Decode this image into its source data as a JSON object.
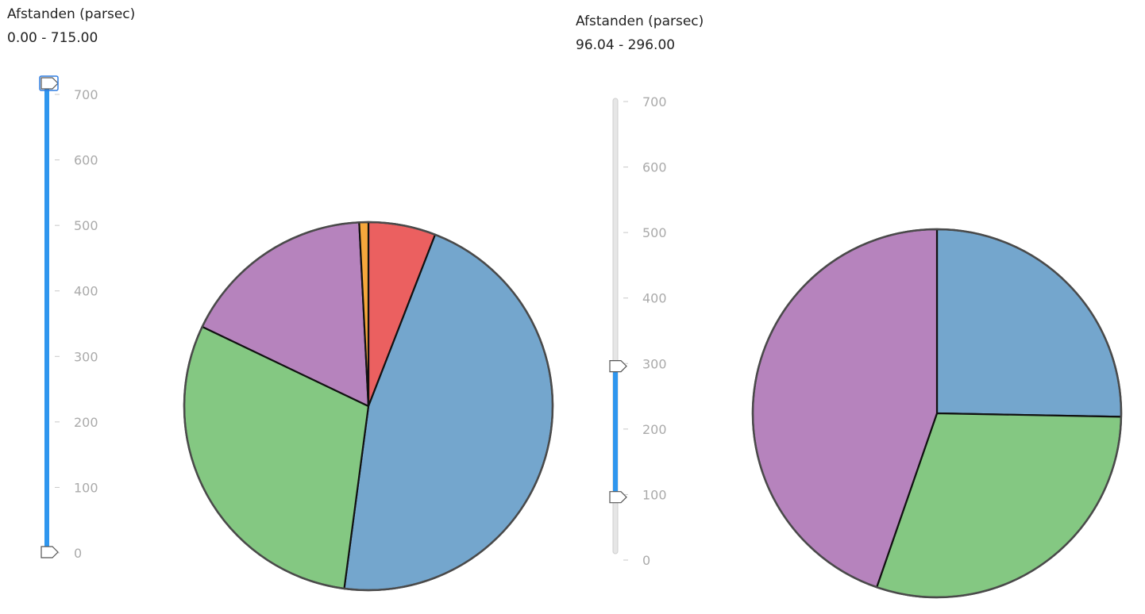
{
  "colors": {
    "blue": "#74a6cd",
    "green": "#84c882",
    "purple": "#b683bd",
    "red": "#eb6060",
    "orange": "#f5a73c",
    "slider_fill": "#2f96ee",
    "track": "#e6e6e6",
    "tick_text": "#aaaaaa"
  },
  "panels": [
    {
      "header": {
        "title": "Afstanden (parsec)",
        "range_text": "0.00 - 715.00"
      },
      "slider": {
        "min": 0,
        "max": 715,
        "low": 0,
        "high": 715,
        "ticks": [
          0,
          100,
          200,
          300,
          400,
          500,
          600,
          700
        ]
      },
      "chart_data": {
        "type": "pie",
        "slices": [
          {
            "value": 0.059,
            "color": "#eb6060"
          },
          {
            "value": 0.462,
            "color": "#74a6cd"
          },
          {
            "value": 0.3,
            "color": "#84c882"
          },
          {
            "value": 0.171,
            "color": "#b683bd"
          },
          {
            "value": 0.008,
            "color": "#f5a73c"
          }
        ]
      }
    },
    {
      "header": {
        "title": "Afstanden (parsec)",
        "range_text": "96.04 - 296.00"
      },
      "slider": {
        "min": 0,
        "max": 715,
        "low": 96.04,
        "high": 296,
        "ticks": [
          0,
          100,
          200,
          300,
          400,
          500,
          600,
          700
        ]
      },
      "chart_data": {
        "type": "pie",
        "slices": [
          {
            "value": 0.253,
            "color": "#74a6cd"
          },
          {
            "value": 0.3,
            "color": "#84c882"
          },
          {
            "value": 0.447,
            "color": "#b683bd"
          }
        ]
      }
    }
  ]
}
